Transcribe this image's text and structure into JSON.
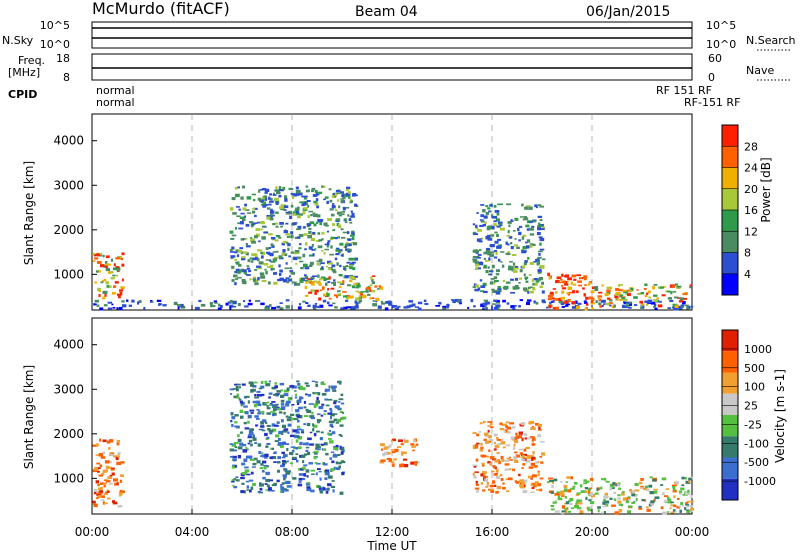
{
  "header": {
    "station": "McMurdo (fitACF)",
    "beam": "Beam 04",
    "date": "06/Jan/2015"
  },
  "top_panel": {
    "left_label": "N.Sky",
    "right_label": "N.Search",
    "left_ticks": [
      "10^5",
      "10^0"
    ],
    "right_ticks": [
      "10^5",
      "10^0"
    ]
  },
  "freq_panel": {
    "left_label_1": "Freq.",
    "left_label_2": "[MHz]",
    "right_label": "Nave",
    "left_ticks": [
      "18",
      "8"
    ],
    "right_ticks": [
      "60",
      "0"
    ]
  },
  "cpid": {
    "label": "CPID",
    "left_modes": [
      "normal",
      "normal"
    ],
    "right_text": "RF 151 RF",
    "right_text_2": "RF-151 RF"
  },
  "colors": {
    "power": [
      "#0000ff",
      "#2b4fd0",
      "#4a8c62",
      "#2f9b4a",
      "#a8c83a",
      "#f0b000",
      "#ff6000",
      "#ff2000"
    ],
    "velocity": [
      "#2030c0",
      "#3a6fd0",
      "#357a6a",
      "#55c040",
      "#c8c8c8",
      "#f0a030",
      "#ff6000",
      "#e02000"
    ]
  },
  "chart_data": [
    {
      "type": "heatmap",
      "title": "Power",
      "xlabel": "",
      "ylabel": "Slant Range [km]",
      "x_ticks": [
        "00:00",
        "04:00",
        "08:00",
        "12:00",
        "16:00",
        "20:00",
        "00:00"
      ],
      "y_ticks": [
        1000,
        2000,
        3000,
        4000
      ],
      "ylim": [
        200,
        4600
      ],
      "colorbar": {
        "label": "Power [dB]",
        "ticks": [
          "28",
          "24",
          "20",
          "16",
          "12",
          "8",
          "4"
        ]
      },
      "echo_regions": [
        {
          "t_start": 0.0,
          "t_end": 24.0,
          "r_min": 250,
          "r_max": 450,
          "level": "low"
        },
        {
          "t_start": 0.0,
          "t_end": 1.2,
          "r_min": 450,
          "r_max": 1500,
          "level": "high"
        },
        {
          "t_start": 5.5,
          "t_end": 10.5,
          "r_min": 800,
          "r_max": 3000,
          "level": "mid"
        },
        {
          "t_start": 8.5,
          "t_end": 11.5,
          "r_min": 450,
          "r_max": 1000,
          "level": "high"
        },
        {
          "t_start": 15.2,
          "t_end": 18.0,
          "r_min": 600,
          "r_max": 2600,
          "level": "mid"
        },
        {
          "t_start": 18.2,
          "t_end": 20.0,
          "r_min": 250,
          "r_max": 1050,
          "level": "very-high"
        },
        {
          "t_start": 20.0,
          "t_end": 24.0,
          "r_min": 300,
          "r_max": 800,
          "level": "high"
        }
      ]
    },
    {
      "type": "heatmap",
      "title": "Velocity",
      "xlabel": "Time UT",
      "ylabel": "Slant Range [km]",
      "x_ticks": [
        "00:00",
        "04:00",
        "08:00",
        "12:00",
        "16:00",
        "20:00",
        "00:00"
      ],
      "y_ticks": [
        1000,
        2000,
        3000,
        4000
      ],
      "ylim": [
        200,
        4600
      ],
      "colorbar": {
        "label": "Velocity [m s-1]",
        "ticks": [
          "1000",
          "500",
          "100",
          "25",
          "-25",
          "-100",
          "-500",
          "-1000"
        ]
      },
      "echo_regions": [
        {
          "t_start": 0.0,
          "t_end": 1.2,
          "r_min": 400,
          "r_max": 1900,
          "level": "away"
        },
        {
          "t_start": 5.5,
          "t_end": 10.0,
          "r_min": 700,
          "r_max": 3200,
          "level": "toward"
        },
        {
          "t_start": 11.5,
          "t_end": 13.0,
          "r_min": 1300,
          "r_max": 1900,
          "level": "away"
        },
        {
          "t_start": 15.2,
          "t_end": 18.0,
          "r_min": 700,
          "r_max": 2300,
          "level": "away"
        },
        {
          "t_start": 18.2,
          "t_end": 24.0,
          "r_min": 250,
          "r_max": 1050,
          "level": "mixed"
        }
      ]
    }
  ]
}
